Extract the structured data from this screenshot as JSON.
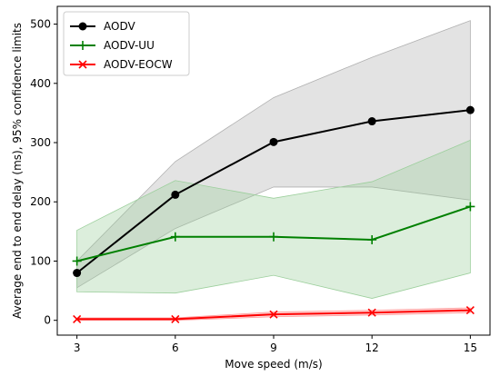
{
  "chart_data": {
    "type": "line",
    "xlabel": "Move speed (m/s)",
    "ylabel": "Average end to end delay (ms), 95% confidence limits",
    "x": [
      3,
      6,
      9,
      12,
      15
    ],
    "xticks": [
      3,
      6,
      9,
      12,
      15
    ],
    "yticks": [
      0,
      100,
      200,
      300,
      400,
      500
    ],
    "xlim": [
      2.4,
      15.6
    ],
    "ylim": [
      -25,
      530
    ],
    "grid": false,
    "legend_position": "top-left",
    "series": [
      {
        "name": "AODV",
        "color": "#000000",
        "band_color": "#b0b0b0",
        "marker": "circle",
        "values": [
          80,
          212,
          301,
          336,
          355
        ],
        "lower": [
          55,
          155,
          225,
          225,
          203
        ],
        "upper": [
          100,
          268,
          376,
          444,
          506
        ]
      },
      {
        "name": "AODV-UU",
        "color": "#008000",
        "band_color": "#9ccf9c",
        "marker": "plus",
        "values": [
          100,
          141,
          141,
          136,
          192
        ],
        "lower": [
          48,
          46,
          76,
          37,
          80
        ],
        "upper": [
          152,
          236,
          206,
          234,
          304
        ]
      },
      {
        "name": "AODV-EOCW",
        "color": "#ff0000",
        "band_color": "#ff9999",
        "marker": "x",
        "values": [
          2,
          2,
          10,
          13,
          17
        ],
        "lower": [
          0,
          0,
          6,
          9,
          13
        ],
        "upper": [
          4,
          4,
          14,
          17,
          21
        ]
      }
    ]
  }
}
